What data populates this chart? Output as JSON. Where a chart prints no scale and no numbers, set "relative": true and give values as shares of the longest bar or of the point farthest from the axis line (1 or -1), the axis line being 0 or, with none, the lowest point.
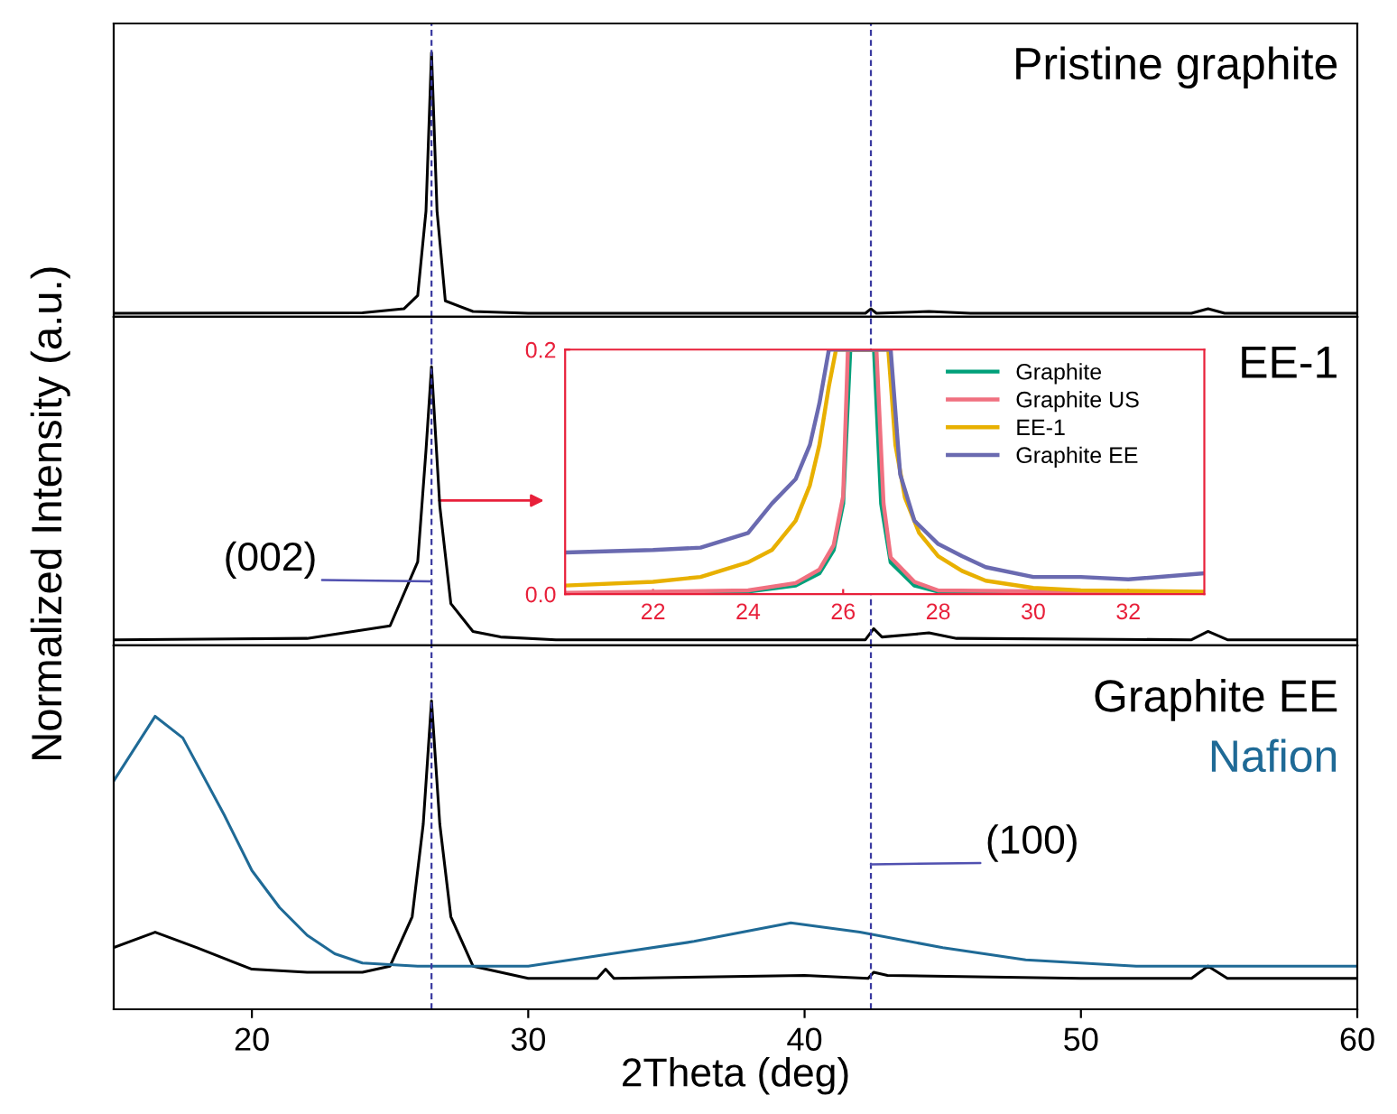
{
  "chart_data": [
    {
      "type": "line",
      "relative": true,
      "xlim": [
        15,
        60
      ],
      "tick_labels": false,
      "series": [
        {
          "name": "Pristine graphite",
          "color": "#000000",
          "x": [
            15,
            24,
            25.5,
            26,
            26.3,
            26.5,
            26.7,
            27,
            28,
            30,
            42.2,
            42.4,
            42.6,
            44.5,
            46,
            54,
            54.6,
            55.2,
            60
          ],
          "values": [
            0.013,
            0.015,
            0.03,
            0.08,
            0.4,
            1,
            0.4,
            0.06,
            0.02,
            0.013,
            0.013,
            0.03,
            0.013,
            0.02,
            0.013,
            0.013,
            0.03,
            0.013,
            0.013
          ]
        }
      ],
      "ref_lines": [
        {
          "axis": "x",
          "value": 26.5,
          "color": "#3a3aa0",
          "line_style": "dashed"
        },
        {
          "axis": "x",
          "value": 42.4,
          "color": "#3a3aa0",
          "line_style": "dashed"
        }
      ]
    },
    {
      "type": "line",
      "relative": true,
      "xlim": [
        15,
        60
      ],
      "tick_labels": false,
      "ylabel": "Normalized Intensity (a.u.)",
      "series": [
        {
          "name": "EE-1",
          "color": "#000000",
          "x": [
            15,
            22,
            25,
            26,
            26.3,
            26.5,
            26.8,
            27.2,
            28,
            29,
            31,
            42.2,
            42.5,
            42.8,
            44,
            44.5,
            45.5,
            54,
            54.6,
            55.3,
            60
          ],
          "values": [
            0.02,
            0.025,
            0.07,
            0.3,
            0.7,
            1,
            0.5,
            0.15,
            0.05,
            0.03,
            0.02,
            0.02,
            0.06,
            0.03,
            0.04,
            0.045,
            0.025,
            0.02,
            0.05,
            0.02,
            0.02
          ]
        }
      ],
      "ref_lines": [
        {
          "axis": "x",
          "value": 26.5,
          "color": "#3a3aa0",
          "line_style": "dashed"
        },
        {
          "axis": "x",
          "value": 42.4,
          "color": "#3a3aa0",
          "line_style": "dashed"
        }
      ],
      "annotations": [
        {
          "text": "(002)",
          "x": 26.5,
          "y": 0.23
        }
      ]
    },
    {
      "type": "line",
      "relative": true,
      "xlim": [
        15,
        60
      ],
      "xticks": [
        20,
        30,
        40,
        50,
        60
      ],
      "tick_labels": "x",
      "xlabel": "2Theta (deg)",
      "series": [
        {
          "name": "Graphite EE",
          "color": "#000000",
          "x": [
            15,
            16.5,
            18,
            20,
            22,
            24,
            25,
            25.8,
            26.2,
            26.5,
            26.8,
            27.2,
            28,
            30,
            32.5,
            32.8,
            33.1,
            40,
            42.3,
            42.5,
            43,
            50,
            54,
            54.6,
            55.3,
            60
          ],
          "values": [
            0.2,
            0.25,
            0.2,
            0.13,
            0.12,
            0.12,
            0.14,
            0.3,
            0.6,
            1,
            0.6,
            0.3,
            0.14,
            0.1,
            0.1,
            0.13,
            0.1,
            0.11,
            0.1,
            0.12,
            0.11,
            0.1,
            0.1,
            0.14,
            0.1,
            0.1
          ]
        },
        {
          "name": "Nafion",
          "color": "#1f6a96",
          "x": [
            15,
            16.5,
            17.5,
            19,
            20,
            21,
            22,
            23,
            24,
            26,
            30,
            33,
            36,
            39.5,
            42,
            45,
            48,
            52,
            60
          ],
          "values": [
            0.74,
            0.95,
            0.88,
            0.63,
            0.45,
            0.33,
            0.24,
            0.18,
            0.15,
            0.14,
            0.14,
            0.18,
            0.22,
            0.28,
            0.25,
            0.2,
            0.16,
            0.14,
            0.14
          ]
        }
      ],
      "ref_lines": [
        {
          "axis": "x",
          "value": 26.5,
          "color": "#3a3aa0",
          "line_style": "dashed"
        },
        {
          "axis": "x",
          "value": 42.4,
          "color": "#3a3aa0",
          "line_style": "dashed"
        }
      ],
      "annotations": [
        {
          "text": "(100)",
          "x": 42.4,
          "y": 0.47
        }
      ]
    },
    {
      "type": "line",
      "xlim": [
        20.15,
        33.6
      ],
      "ylim": [
        0,
        0.2
      ],
      "xticks": [
        22,
        24,
        26,
        28,
        30,
        32
      ],
      "yticks": [
        {
          "value": 0,
          "label": "0.0"
        },
        {
          "value": 0.2,
          "label": "0.2"
        }
      ],
      "legend": "top right",
      "series": [
        {
          "name": "Graphite",
          "color": "#00a07a",
          "x": [
            20.15,
            24,
            25,
            25.5,
            25.8,
            26,
            26.15,
            26.65,
            26.8,
            27,
            27.5,
            28,
            33.6
          ],
          "values": [
            0,
            0.002,
            0.007,
            0.017,
            0.036,
            0.074,
            0.2,
            0.2,
            0.074,
            0.026,
            0.007,
            0.002,
            0
          ]
        },
        {
          "name": "Graphite US",
          "color": "#f07080",
          "x": [
            20.15,
            24,
            25,
            25.5,
            25.8,
            26,
            26.1,
            26.7,
            26.85,
            27,
            27.5,
            28,
            33.6
          ],
          "values": [
            0.001,
            0.003,
            0.009,
            0.02,
            0.04,
            0.08,
            0.2,
            0.2,
            0.074,
            0.03,
            0.01,
            0.003,
            0.001
          ]
        },
        {
          "name": "EE-1",
          "color": "#e8b000",
          "x": [
            20.15,
            22,
            23,
            24,
            24.5,
            25,
            25.3,
            25.5,
            25.7,
            25.85,
            26.95,
            27.1,
            27.3,
            27.6,
            28,
            28.5,
            29,
            30,
            31,
            33.6
          ],
          "values": [
            0.007,
            0.01,
            0.014,
            0.026,
            0.036,
            0.06,
            0.089,
            0.122,
            0.17,
            0.2,
            0.2,
            0.122,
            0.079,
            0.05,
            0.031,
            0.019,
            0.011,
            0.005,
            0.003,
            0.002
          ]
        },
        {
          "name": "Graphite EE",
          "color": "#6a6ab0",
          "x": [
            20.15,
            22,
            23,
            24,
            24.5,
            25,
            25.3,
            25.5,
            25.7,
            27,
            27.2,
            27.5,
            28,
            28.5,
            29,
            30,
            31,
            32,
            33.6
          ],
          "values": [
            0.034,
            0.036,
            0.038,
            0.05,
            0.074,
            0.094,
            0.122,
            0.156,
            0.2,
            0.2,
            0.098,
            0.06,
            0.041,
            0.031,
            0.022,
            0.014,
            0.014,
            0.012,
            0.017
          ]
        }
      ]
    }
  ]
}
